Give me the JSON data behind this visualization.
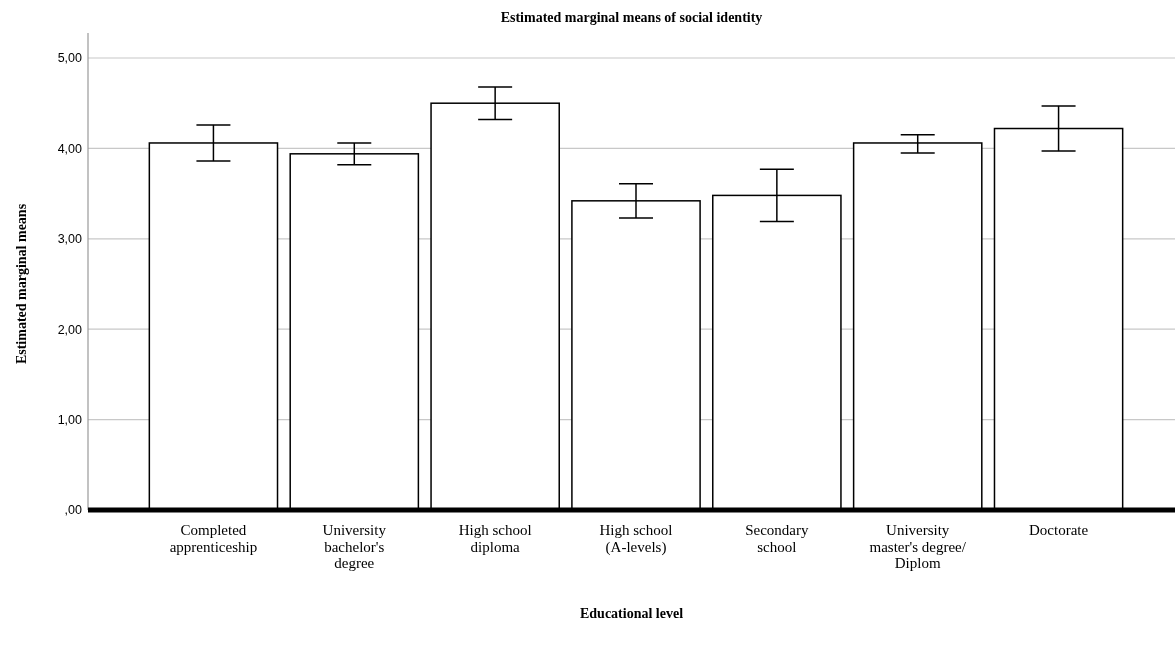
{
  "chart_data": {
    "type": "bar",
    "title": "Estimated marginal means of social identity",
    "xlabel": "Educational level",
    "ylabel": "Estimated marginal means",
    "categories": [
      "Completed apprenticeship",
      "University bachelor's degree",
      "High school diploma",
      "High school (A-levels)",
      "Secondary school",
      "University master's degree/Diplom",
      "Doctorate"
    ],
    "values": [
      4.06,
      3.94,
      4.5,
      3.42,
      3.48,
      4.06,
      4.22
    ],
    "errors": [
      [
        3.86,
        4.26
      ],
      [
        3.82,
        4.06
      ],
      [
        4.32,
        4.68
      ],
      [
        3.23,
        3.61
      ],
      [
        3.19,
        3.77
      ],
      [
        3.95,
        4.15
      ],
      [
        3.97,
        4.47
      ]
    ],
    "color": "#ffffff",
    "ylim": [
      0,
      5
    ],
    "yticks": [
      {
        "value": 0,
        "label": ",00"
      },
      {
        "value": 1,
        "label": "1,00"
      },
      {
        "value": 2,
        "label": "2,00"
      },
      {
        "value": 3,
        "label": "3,00"
      },
      {
        "value": 4,
        "label": "4,00"
      },
      {
        "value": 5,
        "label": "5,00"
      }
    ],
    "grid": "y"
  }
}
